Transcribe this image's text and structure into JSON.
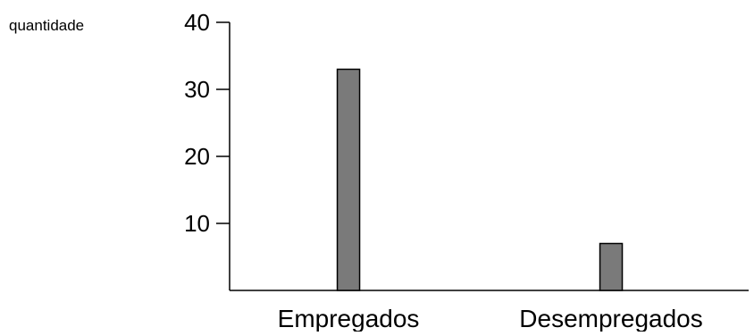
{
  "chart_data": {
    "type": "bar",
    "title": "",
    "xlabel": "",
    "ylabel": "quantidade",
    "categories": [
      "Empregados",
      "Desempregados"
    ],
    "values": [
      33,
      7
    ],
    "ylim": [
      0,
      40
    ],
    "yticks": [
      10,
      20,
      30,
      40
    ],
    "grid": false,
    "legend": "none",
    "colors": {
      "bar_fill": "#7a7a7a",
      "bar_stroke": "#000000",
      "axis": "#000000"
    }
  }
}
